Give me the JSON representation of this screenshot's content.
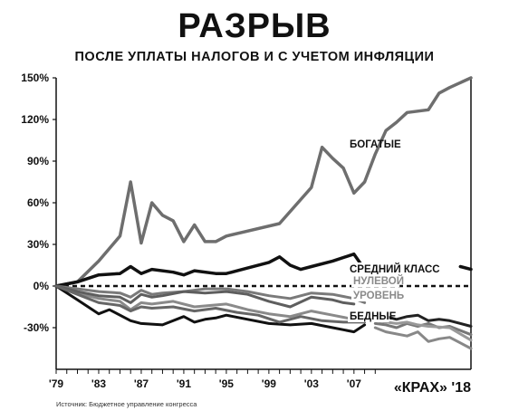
{
  "header": {
    "title": "РАЗРЫВ",
    "subtitle": "ПОСЛЕ УПЛАТЫ НАЛОГОВ И С УЧЕТОМ ИНФЛЯЦИИ",
    "source": "Источник: Бюджетное управление конгресса",
    "brand": "«КРАХ» '18"
  },
  "colors": {
    "rich": "#6e6e6e",
    "middle": "#111111",
    "poor": "#555555",
    "gray": "#8a8a8a",
    "zero": "#111111"
  },
  "chart_data": {
    "type": "line",
    "ylim": [
      -60,
      150
    ],
    "xlim": [
      1979,
      2018
    ],
    "yticks": [
      150,
      120,
      90,
      60,
      30,
      0,
      -30
    ],
    "ytick_labels": [
      "150%",
      "120%",
      "90%",
      "60%",
      "30%",
      "0%",
      "-30%"
    ],
    "xticks": [
      1979,
      1983,
      1987,
      1991,
      1995,
      1999,
      2003,
      2007
    ],
    "xtick_labels": [
      "'79",
      "'83",
      "'87",
      "'91",
      "'95",
      "'99",
      "'03",
      "'07"
    ],
    "labels": {
      "rich": "БОГАТЫЕ",
      "middle": "СРЕДНИЙ КЛАСС",
      "zero_line_1": "НУЛЕВОЙ",
      "zero_line_2": "УРОВЕНЬ",
      "poor": "БЕДНЫЕ"
    },
    "series": [
      {
        "key": "rich",
        "color": "#6e6e6e",
        "width": 3.5,
        "x": [
          1979,
          1981,
          1983,
          1985,
          1986,
          1987,
          1988,
          1989,
          1990,
          1991,
          1992,
          1993,
          1994,
          1995,
          2000,
          2003,
          2004,
          2005,
          2006,
          2007,
          2008,
          2009,
          2010,
          2011,
          2012,
          2014,
          2015,
          2016,
          2018
        ],
        "y": [
          0,
          3,
          18,
          36,
          75,
          31,
          60,
          51,
          47,
          32,
          44,
          32,
          32,
          36,
          45,
          71,
          100,
          92,
          85,
          67,
          75,
          95,
          112,
          118,
          125,
          127,
          139,
          143,
          150
        ]
      },
      {
        "key": "middle",
        "color": "#111111",
        "width": 3.5,
        "x": [
          1979,
          1981,
          1983,
          1985,
          1986,
          1987,
          1988,
          1990,
          1991,
          1992,
          1994,
          1995,
          1997,
          1999,
          2000,
          2001,
          2002,
          2003,
          2005,
          2007,
          2008
        ],
        "y": [
          0,
          3,
          8,
          9,
          14,
          9,
          12,
          10,
          8,
          11,
          9,
          9,
          13,
          17,
          21,
          15,
          12,
          14,
          18,
          23,
          12
        ]
      },
      {
        "key": "middle_tail",
        "color": "#111111",
        "width": 3.5,
        "x": [
          2017,
          2018
        ],
        "y": [
          14,
          12
        ]
      },
      {
        "key": "upper_mid",
        "color": "#7a7a7a",
        "width": 3,
        "x": [
          1979,
          1981,
          1983,
          1985,
          1986,
          1987,
          1988,
          1989,
          1991,
          1993,
          1995,
          1997,
          1999,
          2001,
          2003,
          2005,
          2007,
          2008
        ],
        "y": [
          0,
          -2,
          -4,
          -5,
          -8,
          -3,
          -6,
          -5,
          -4,
          -2,
          -2,
          -4,
          -7,
          -9,
          -5,
          -6,
          -9,
          -12
        ]
      },
      {
        "key": "lower_mid",
        "color": "#8a8a8a",
        "width": 3,
        "x": [
          1979,
          1981,
          1983,
          1985,
          1986,
          1987,
          1988,
          1990,
          1992,
          1995,
          1997,
          1999,
          2001,
          2003,
          2005,
          2007,
          2008
        ],
        "y": [
          0,
          -5,
          -9,
          -11,
          -17,
          -12,
          -13,
          -11,
          -15,
          -13,
          -17,
          -20,
          -22,
          -18,
          -21,
          -24,
          -24
        ]
      },
      {
        "key": "mid_band",
        "color": "#5e5e5e",
        "width": 3,
        "x": [
          1979,
          1981,
          1983,
          1985,
          1986,
          1987,
          1988,
          1989,
          1991,
          1993,
          1995,
          1997,
          1999,
          2001,
          2003,
          2005,
          2006,
          2007
        ],
        "y": [
          0,
          -4,
          -7,
          -8,
          -12,
          -6,
          -8,
          -7,
          -4,
          -5,
          -4,
          -6,
          -11,
          -15,
          -8,
          -10,
          -12,
          -13
        ]
      },
      {
        "key": "poor",
        "color": "#111111",
        "width": 3,
        "x": [
          1979,
          1981,
          1983,
          1984,
          1985,
          1986,
          1987,
          1989,
          1991,
          1992,
          1993,
          1994,
          1995,
          1997,
          1999,
          2001,
          2003,
          2005,
          2007,
          2008
        ],
        "y": [
          0,
          -10,
          -20,
          -17,
          -21,
          -25,
          -27,
          -28,
          -22,
          -26,
          -24,
          -23,
          -21,
          -24,
          -27,
          -28,
          -27,
          -30,
          -33,
          -28
        ]
      },
      {
        "key": "poor_mid",
        "color": "#666666",
        "width": 3,
        "x": [
          1979,
          1981,
          1983,
          1985,
          1986,
          1987,
          1988,
          1990,
          1992,
          1994,
          1996,
          1998,
          2000,
          2002,
          2004,
          2006,
          2008
        ],
        "y": [
          0,
          -6,
          -12,
          -14,
          -18,
          -15,
          -16,
          -15,
          -18,
          -16,
          -19,
          -21,
          -26,
          -22,
          -25,
          -26,
          -26
        ]
      },
      {
        "key": "tail_a",
        "color": "#222222",
        "width": 3,
        "x": [
          2009,
          2010,
          2011,
          2012,
          2013,
          2014,
          2015,
          2016,
          2018
        ],
        "y": [
          -23,
          -22,
          -24,
          -22,
          -21,
          -25,
          -24,
          -25,
          -29
        ]
      },
      {
        "key": "tail_b",
        "color": "#777777",
        "width": 3,
        "x": [
          2009,
          2010,
          2011,
          2012,
          2013,
          2014,
          2015,
          2016,
          2018
        ],
        "y": [
          -27,
          -28,
          -30,
          -27,
          -29,
          -27,
          -30,
          -29,
          -35
        ]
      },
      {
        "key": "tail_c",
        "color": "#888888",
        "width": 3,
        "x": [
          2009,
          2010,
          2012,
          2013,
          2014,
          2015,
          2016,
          2018
        ],
        "y": [
          -30,
          -33,
          -36,
          -33,
          -40,
          -38,
          -37,
          -45
        ]
      },
      {
        "key": "tail_d",
        "color": "#999999",
        "width": 3,
        "x": [
          2009,
          2011,
          2012,
          2013,
          2014,
          2016,
          2018
        ],
        "y": [
          -25,
          -27,
          -26,
          -28,
          -29,
          -30,
          -39
        ]
      }
    ],
    "zero_line": {
      "y": 0,
      "style": "dashed"
    }
  }
}
